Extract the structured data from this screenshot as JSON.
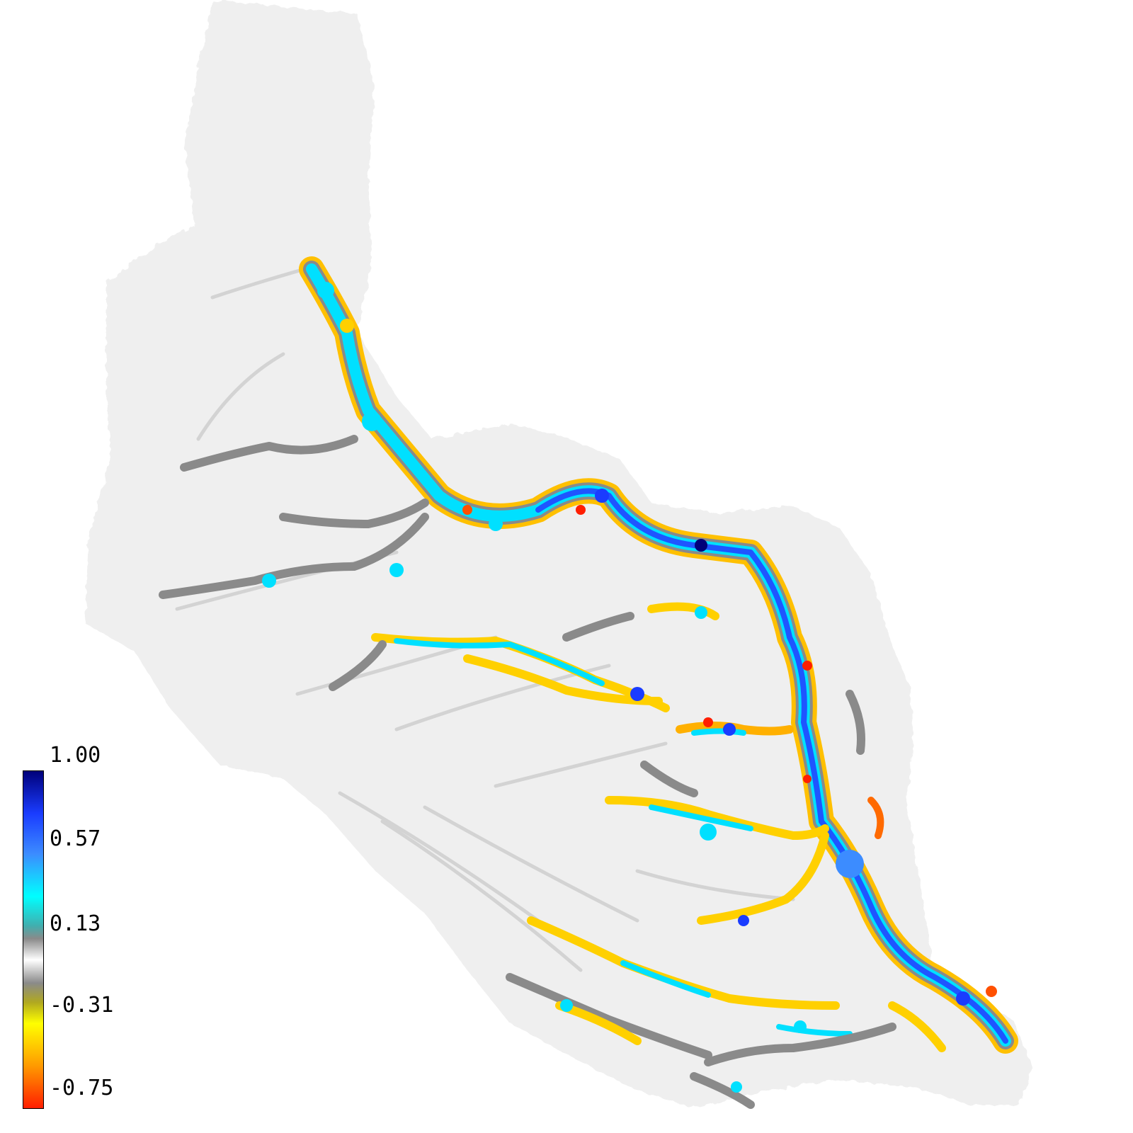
{
  "colorbar": {
    "ticks": [
      "1.00",
      "0.57",
      "0.13",
      "-0.31",
      "-0.75"
    ],
    "min": -0.75,
    "max": 1.0,
    "stops": [
      {
        "value": 1.0,
        "color": "#00007a"
      },
      {
        "value": 0.78,
        "color": "#1a3cff"
      },
      {
        "value": 0.57,
        "color": "#3c8cff"
      },
      {
        "value": 0.35,
        "color": "#00ffff"
      },
      {
        "value": 0.2,
        "color": "#3fb0b0"
      },
      {
        "value": 0.13,
        "color": "#8a8a8a"
      },
      {
        "value": 0.02,
        "color": "#ffffff"
      },
      {
        "value": -0.1,
        "color": "#8a8a8a"
      },
      {
        "value": -0.2,
        "color": "#b0a820"
      },
      {
        "value": -0.31,
        "color": "#ffff00"
      },
      {
        "value": -0.53,
        "color": "#ff9a00"
      },
      {
        "value": -0.75,
        "color": "#ff1e00"
      }
    ]
  },
  "map": {
    "background": "#ffffff",
    "land_color": "#efefef",
    "channel_colors": {
      "high": "#1a3cff",
      "mid": "#00e8ff",
      "neutral": "#8a8a8a",
      "low": "#ffee00",
      "lowest": "#ff5000"
    }
  }
}
